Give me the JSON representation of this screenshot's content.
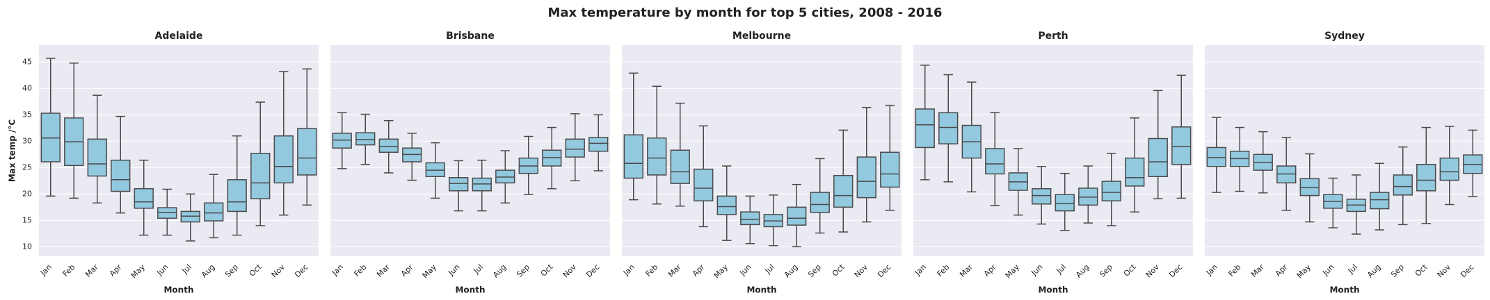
{
  "title": "Max temperature by month for top 5 cities, 2008 - 2016",
  "chart_data": [
    {
      "type": "box",
      "title": "Adelaide",
      "x_label": "Month",
      "y_label": "Max temp /°C",
      "color": "#92c9df",
      "categories": [
        "Jan",
        "Feb",
        "Mar",
        "Apr",
        "May",
        "Jun",
        "Jul",
        "Aug",
        "Sep",
        "Oct",
        "Nov",
        "Dec"
      ],
      "whisker_low": [
        19.6,
        19.2,
        18.3,
        16.4,
        12.2,
        12.2,
        11.1,
        11.7,
        12.2,
        14.0,
        16.0,
        17.9
      ],
      "q1": [
        26.1,
        25.4,
        23.4,
        20.5,
        17.3,
        15.4,
        14.7,
        14.9,
        16.7,
        19.1,
        22.1,
        23.6
      ],
      "median": [
        30.6,
        29.9,
        25.7,
        22.7,
        18.5,
        16.5,
        15.8,
        16.4,
        18.5,
        22.1,
        25.2,
        26.8
      ],
      "q3": [
        35.3,
        34.4,
        30.4,
        26.4,
        21.0,
        17.4,
        16.7,
        18.3,
        22.7,
        27.7,
        31.0,
        32.4
      ],
      "whisker_high": [
        45.7,
        44.8,
        38.7,
        34.7,
        26.4,
        20.9,
        20.0,
        23.7,
        31.0,
        37.4,
        43.2,
        43.7
      ],
      "ylim": [
        8.2,
        48.2
      ],
      "yticks": [
        10,
        15,
        20,
        25,
        30,
        35,
        40,
        45
      ],
      "grid": true
    },
    {
      "type": "box",
      "title": "Brisbane",
      "x_label": "Month",
      "color": "#92c9df",
      "categories": [
        "Jan",
        "Feb",
        "Mar",
        "Apr",
        "May",
        "Jun",
        "Jul",
        "Aug",
        "Sep",
        "Oct",
        "Nov",
        "Dec"
      ],
      "whisker_low": [
        24.8,
        25.6,
        24.0,
        22.6,
        19.2,
        16.8,
        16.8,
        18.3,
        19.9,
        21.0,
        22.5,
        24.4
      ],
      "q1": [
        28.7,
        29.3,
        27.9,
        26.1,
        23.3,
        20.6,
        20.6,
        22.1,
        23.9,
        25.3,
        27.0,
        28.1
      ],
      "median": [
        30.2,
        30.3,
        29.0,
        27.5,
        24.5,
        22.0,
        21.9,
        23.2,
        25.3,
        26.9,
        28.5,
        29.6
      ],
      "q3": [
        31.5,
        31.6,
        30.4,
        28.7,
        25.9,
        23.1,
        23.0,
        24.5,
        26.8,
        28.3,
        30.4,
        30.7
      ],
      "whisker_high": [
        35.4,
        35.1,
        33.9,
        31.5,
        29.7,
        26.3,
        26.4,
        28.2,
        30.9,
        32.6,
        35.2,
        35.0
      ],
      "ylim": [
        8.2,
        48.2
      ],
      "yticks": [
        10,
        15,
        20,
        25,
        30,
        35,
        40,
        45
      ],
      "grid": true
    },
    {
      "type": "box",
      "title": "Melbourne",
      "x_label": "Month",
      "color": "#92c9df",
      "categories": [
        "Jan",
        "Feb",
        "Mar",
        "Apr",
        "May",
        "Jun",
        "Jul",
        "Aug",
        "Sep",
        "Oct",
        "Nov",
        "Dec"
      ],
      "whisker_low": [
        18.9,
        18.1,
        17.7,
        13.8,
        11.2,
        10.6,
        10.2,
        10.0,
        12.6,
        12.8,
        14.7,
        16.9
      ],
      "q1": [
        23.0,
        23.6,
        22.0,
        18.7,
        16.1,
        14.2,
        13.8,
        14.1,
        16.5,
        17.5,
        19.3,
        21.3
      ],
      "median": [
        25.8,
        26.8,
        24.2,
        21.1,
        17.6,
        15.2,
        14.9,
        15.4,
        18.0,
        19.7,
        22.4,
        23.8
      ],
      "q3": [
        31.2,
        30.6,
        28.3,
        24.7,
        19.6,
        16.6,
        16.1,
        17.5,
        20.3,
        23.5,
        27.0,
        27.9
      ],
      "whisker_high": [
        42.9,
        40.4,
        37.2,
        32.9,
        25.3,
        19.6,
        19.8,
        21.8,
        26.7,
        32.1,
        36.4,
        36.8
      ],
      "ylim": [
        8.2,
        48.2
      ],
      "yticks": [
        10,
        15,
        20,
        25,
        30,
        35,
        40,
        45
      ],
      "grid": true
    },
    {
      "type": "box",
      "title": "Perth",
      "x_label": "Month",
      "color": "#92c9df",
      "categories": [
        "Jan",
        "Feb",
        "Mar",
        "Apr",
        "May",
        "Jun",
        "Jul",
        "Aug",
        "Sep",
        "Oct",
        "Nov",
        "Dec"
      ],
      "whisker_low": [
        22.7,
        22.3,
        20.4,
        17.8,
        16.0,
        14.3,
        13.1,
        14.5,
        14.0,
        16.6,
        19.1,
        19.2
      ],
      "q1": [
        28.8,
        29.5,
        26.8,
        23.8,
        20.7,
        18.1,
        16.8,
        17.9,
        18.7,
        21.5,
        23.3,
        25.6
      ],
      "median": [
        33.1,
        32.6,
        29.9,
        25.7,
        22.3,
        19.7,
        18.2,
        19.4,
        20.3,
        23.1,
        26.1,
        29.0
      ],
      "q3": [
        36.1,
        35.4,
        33.0,
        28.6,
        24.0,
        21.0,
        19.9,
        21.1,
        22.4,
        26.8,
        30.5,
        32.7
      ],
      "whisker_high": [
        44.4,
        42.6,
        41.2,
        35.4,
        28.6,
        25.2,
        23.9,
        25.3,
        27.7,
        34.4,
        39.6,
        42.5
      ],
      "ylim": [
        8.2,
        48.2
      ],
      "yticks": [
        10,
        15,
        20,
        25,
        30,
        35,
        40,
        45
      ],
      "grid": true
    },
    {
      "type": "box",
      "title": "Sydney",
      "x_label": "Month",
      "color": "#92c9df",
      "categories": [
        "Jan",
        "Feb",
        "Mar",
        "Apr",
        "May",
        "Jun",
        "Jul",
        "Aug",
        "Sep",
        "Oct",
        "Nov",
        "Dec"
      ],
      "whisker_low": [
        20.3,
        20.5,
        20.2,
        16.9,
        14.7,
        13.6,
        12.4,
        13.2,
        14.2,
        14.4,
        18.0,
        19.5
      ],
      "q1": [
        25.2,
        25.2,
        24.5,
        22.1,
        19.7,
        17.3,
        16.7,
        17.2,
        19.8,
        20.6,
        22.6,
        23.9
      ],
      "median": [
        26.9,
        26.7,
        26.0,
        23.8,
        21.2,
        18.6,
        17.9,
        18.9,
        21.4,
        22.6,
        24.2,
        25.6
      ],
      "q3": [
        28.8,
        28.1,
        27.5,
        25.3,
        22.9,
        19.9,
        19.0,
        20.3,
        23.6,
        25.6,
        26.8,
        27.4
      ],
      "whisker_high": [
        34.5,
        32.6,
        31.8,
        30.7,
        27.6,
        23.0,
        23.6,
        25.8,
        28.9,
        32.6,
        32.8,
        32.1
      ],
      "ylim": [
        8.2,
        48.2
      ],
      "yticks": [
        10,
        15,
        20,
        25,
        30,
        35,
        40,
        45
      ],
      "grid": true
    }
  ]
}
